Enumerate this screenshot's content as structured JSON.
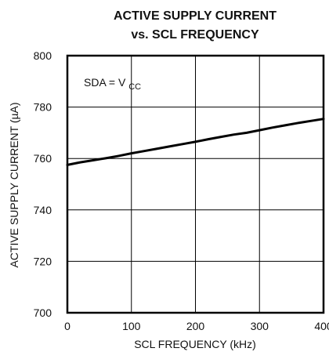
{
  "chart_data": {
    "type": "line",
    "title_lines": [
      "ACTIVE SUPPLY CURRENT",
      "vs. SCL FREQUENCY"
    ],
    "xlabel": "SCL FREQUENCY (kHz)",
    "ylabel": "ACTIVE SUPPLY CURRENT (µA)",
    "xlim": [
      0,
      400
    ],
    "ylim": [
      700,
      800
    ],
    "x_ticks": [
      0,
      100,
      200,
      300,
      400
    ],
    "y_ticks": [
      700,
      720,
      740,
      760,
      780,
      800
    ],
    "x_tick_labels": [
      "0",
      "100",
      "200",
      "300",
      "400"
    ],
    "y_tick_labels": [
      "700",
      "720",
      "740",
      "760",
      "780",
      "800"
    ],
    "grid": true,
    "annotation": {
      "prefix": "SDA = V",
      "subscript": "CC"
    },
    "series": [
      {
        "x": [
          0,
          20,
          40,
          60,
          80,
          100,
          120,
          140,
          160,
          180,
          200,
          220,
          240,
          260,
          280,
          300,
          320,
          340,
          360,
          380,
          400
        ],
        "y": [
          757.5,
          758.5,
          759.3,
          760.1,
          761.0,
          762.0,
          762.9,
          763.8,
          764.7,
          765.6,
          766.5,
          767.5,
          768.4,
          769.3,
          770.0,
          771.0,
          772.0,
          772.9,
          773.8,
          774.6,
          775.4
        ]
      }
    ],
    "colors": {
      "line": "#000000",
      "grid": "#000000",
      "frame": "#000000"
    }
  }
}
